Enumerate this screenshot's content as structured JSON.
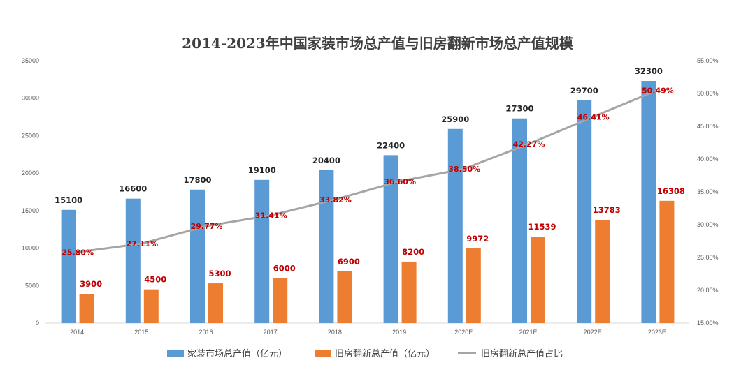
{
  "chart_data": {
    "type": "bar",
    "title": "2014-2023年中国家装市场总产值与旧房翻新市场总产值规模",
    "categories": [
      "2014",
      "2015",
      "2016",
      "2017",
      "2018",
      "2019",
      "2020E",
      "2021E",
      "2022E",
      "2023E"
    ],
    "series": [
      {
        "name": "家装市场总产值（亿元）",
        "type": "bar",
        "axis": "left",
        "color": "#5b9bd5",
        "values": [
          15100,
          16600,
          17800,
          19100,
          20400,
          22400,
          25900,
          27300,
          29700,
          32300
        ],
        "labels": [
          "15100",
          "16600",
          "17800",
          "19100",
          "20400",
          "22400",
          "25900",
          "27300",
          "29700",
          "32300"
        ]
      },
      {
        "name": "旧房翻新总产值（亿元）",
        "type": "bar",
        "axis": "left",
        "color": "#ed7d31",
        "values": [
          3900,
          4500,
          5300,
          6000,
          6900,
          8200,
          9972,
          11539,
          13783,
          16308
        ],
        "labels": [
          "3900",
          "4500",
          "5300",
          "6000",
          "6900",
          "8200",
          "9972",
          "11539",
          "13783",
          "16308"
        ]
      },
      {
        "name": "旧房翻新总产值占比",
        "type": "line",
        "axis": "right",
        "color": "#a5a5a5",
        "values": [
          25.8,
          27.11,
          29.77,
          31.41,
          33.82,
          36.6,
          38.5,
          42.27,
          46.41,
          50.49
        ],
        "labels": [
          "25.80%",
          "27.11%",
          "29.77%",
          "31.41%",
          "33.82%",
          "36.60%",
          "38.50%",
          "42.27%",
          "46.41%",
          "50.49%"
        ]
      }
    ],
    "y_left": {
      "ylim": [
        0,
        35000
      ],
      "ticks": [
        "0",
        "5000",
        "10000",
        "15000",
        "20000",
        "25000",
        "30000",
        "35000"
      ]
    },
    "y_right": {
      "ylim": [
        15,
        55
      ],
      "ticks": [
        "15.00%",
        "20.00%",
        "25.00%",
        "30.00%",
        "35.00%",
        "40.00%",
        "45.00%",
        "50.00%",
        "55.00%"
      ]
    },
    "grid": false,
    "legend_position": "bottom",
    "label_color": "#c00000"
  }
}
